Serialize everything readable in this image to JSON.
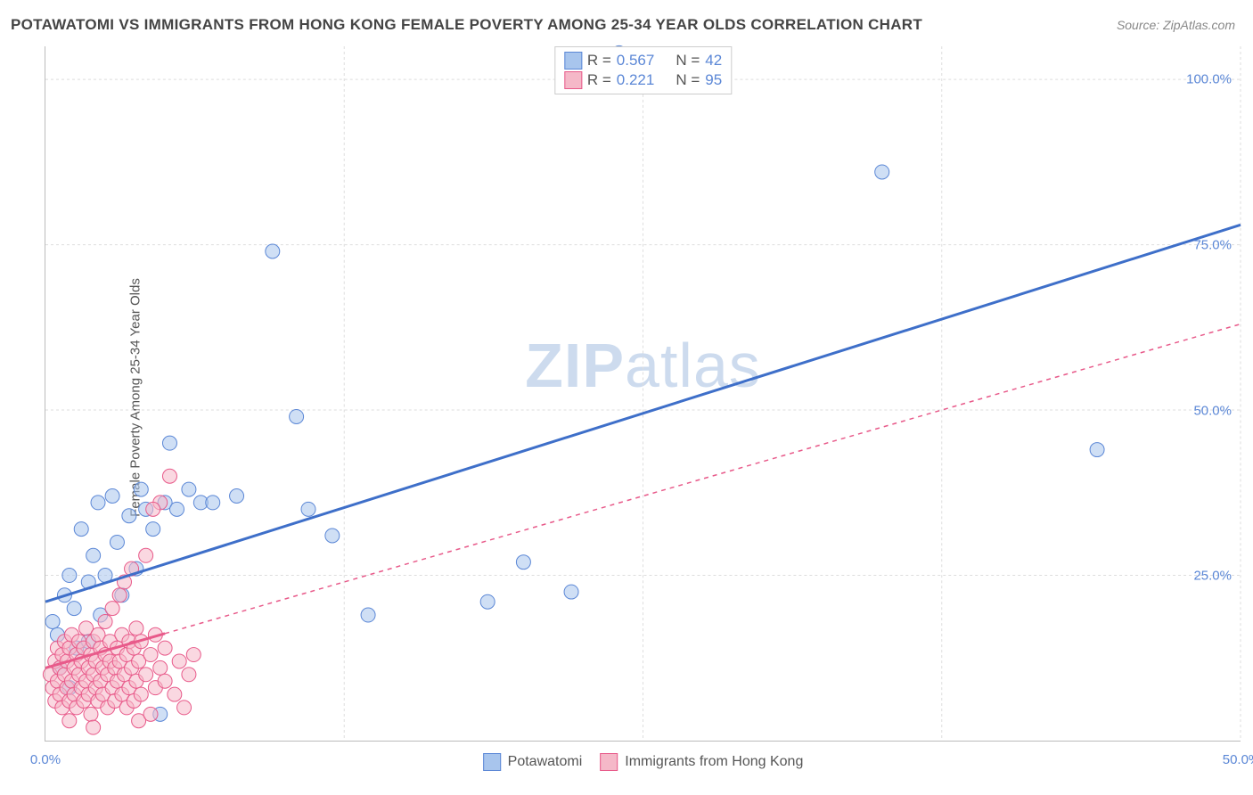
{
  "title": "POTAWATOMI VS IMMIGRANTS FROM HONG KONG FEMALE POVERTY AMONG 25-34 YEAR OLDS CORRELATION CHART",
  "source_label": "Source:",
  "source_value": "ZipAtlas.com",
  "y_axis_label": "Female Poverty Among 25-34 Year Olds",
  "watermark_bold": "ZIP",
  "watermark_light": "atlas",
  "chart": {
    "type": "scatter",
    "xlim": [
      0,
      50
    ],
    "ylim": [
      0,
      105
    ],
    "x_ticks": [
      {
        "pos": 0,
        "label": "0.0%"
      },
      {
        "pos": 50,
        "label": "50.0%"
      }
    ],
    "y_ticks": [
      {
        "pos": 25,
        "label": "25.0%"
      },
      {
        "pos": 50,
        "label": "50.0%"
      },
      {
        "pos": 75,
        "label": "75.0%"
      },
      {
        "pos": 100,
        "label": "100.0%"
      }
    ],
    "x_gridlines": [
      12.5,
      25,
      37.5,
      50
    ],
    "y_gridlines": [
      25,
      50,
      75,
      100
    ],
    "background_color": "#ffffff",
    "grid_color": "#dddddd",
    "marker_radius": 8,
    "marker_opacity": 0.55,
    "trend_line_width": 3,
    "series": [
      {
        "name": "Potawatomi",
        "fill_color": "#a8c5ed",
        "stroke_color": "#5b87d6",
        "r_label": "R =",
        "r_value": "0.567",
        "n_label": "N =",
        "n_value": "42",
        "trend": {
          "x1": 0,
          "y1": 21,
          "x2": 50,
          "y2": 78,
          "dash": "none",
          "color": "#3e6fc9",
          "solid_until_x": 50
        },
        "points": [
          [
            0.3,
            18
          ],
          [
            0.5,
            16
          ],
          [
            0.8,
            22
          ],
          [
            1.0,
            25
          ],
          [
            1.2,
            20
          ],
          [
            1.3,
            14
          ],
          [
            1.5,
            32
          ],
          [
            1.8,
            24
          ],
          [
            2.0,
            28
          ],
          [
            2.2,
            36
          ],
          [
            2.5,
            25
          ],
          [
            2.8,
            37
          ],
          [
            3.0,
            30
          ],
          [
            3.5,
            34
          ],
          [
            3.8,
            26
          ],
          [
            4.0,
            38
          ],
          [
            4.2,
            35
          ],
          [
            4.5,
            32
          ],
          [
            5.0,
            36
          ],
          [
            5.2,
            45
          ],
          [
            5.5,
            35
          ],
          [
            6.0,
            38
          ],
          [
            6.5,
            36
          ],
          [
            7.0,
            36
          ],
          [
            8.0,
            37
          ],
          [
            9.5,
            74
          ],
          [
            10.5,
            49
          ],
          [
            11.0,
            35
          ],
          [
            12.0,
            31
          ],
          [
            13.5,
            19
          ],
          [
            18.5,
            21
          ],
          [
            20.0,
            27
          ],
          [
            22.0,
            22.5
          ],
          [
            24.0,
            104
          ],
          [
            35.0,
            86
          ],
          [
            44.0,
            44
          ],
          [
            1.8,
            15
          ],
          [
            2.3,
            19
          ],
          [
            3.2,
            22
          ],
          [
            1.0,
            8
          ],
          [
            0.6,
            11
          ],
          [
            4.8,
            4
          ]
        ]
      },
      {
        "name": "Immigrants from Hong Kong",
        "fill_color": "#f5b8c8",
        "stroke_color": "#e85a8a",
        "r_label": "R =",
        "r_value": "0.221",
        "n_label": "N =",
        "n_value": "95",
        "trend": {
          "x1": 0,
          "y1": 11,
          "x2": 50,
          "y2": 63,
          "dash": "5,5",
          "color": "#e85a8a",
          "solid_until_x": 5.0
        },
        "points": [
          [
            0.2,
            10
          ],
          [
            0.3,
            8
          ],
          [
            0.4,
            12
          ],
          [
            0.4,
            6
          ],
          [
            0.5,
            14
          ],
          [
            0.5,
            9
          ],
          [
            0.6,
            11
          ],
          [
            0.6,
            7
          ],
          [
            0.7,
            13
          ],
          [
            0.7,
            5
          ],
          [
            0.8,
            15
          ],
          [
            0.8,
            10
          ],
          [
            0.9,
            8
          ],
          [
            0.9,
            12
          ],
          [
            1.0,
            6
          ],
          [
            1.0,
            14
          ],
          [
            1.1,
            9
          ],
          [
            1.1,
            16
          ],
          [
            1.2,
            7
          ],
          [
            1.2,
            11
          ],
          [
            1.3,
            13
          ],
          [
            1.3,
            5
          ],
          [
            1.4,
            10
          ],
          [
            1.4,
            15
          ],
          [
            1.5,
            8
          ],
          [
            1.5,
            12
          ],
          [
            1.6,
            6
          ],
          [
            1.6,
            14
          ],
          [
            1.7,
            9
          ],
          [
            1.7,
            17
          ],
          [
            1.8,
            11
          ],
          [
            1.8,
            7
          ],
          [
            1.9,
            13
          ],
          [
            1.9,
            4
          ],
          [
            2.0,
            10
          ],
          [
            2.0,
            15
          ],
          [
            2.1,
            8
          ],
          [
            2.1,
            12
          ],
          [
            2.2,
            6
          ],
          [
            2.2,
            16
          ],
          [
            2.3,
            9
          ],
          [
            2.3,
            14
          ],
          [
            2.4,
            11
          ],
          [
            2.4,
            7
          ],
          [
            2.5,
            13
          ],
          [
            2.5,
            18
          ],
          [
            2.6,
            10
          ],
          [
            2.6,
            5
          ],
          [
            2.7,
            12
          ],
          [
            2.7,
            15
          ],
          [
            2.8,
            8
          ],
          [
            2.8,
            20
          ],
          [
            2.9,
            11
          ],
          [
            2.9,
            6
          ],
          [
            3.0,
            14
          ],
          [
            3.0,
            9
          ],
          [
            3.1,
            22
          ],
          [
            3.1,
            12
          ],
          [
            3.2,
            7
          ],
          [
            3.2,
            16
          ],
          [
            3.3,
            10
          ],
          [
            3.3,
            24
          ],
          [
            3.4,
            13
          ],
          [
            3.4,
            5
          ],
          [
            3.5,
            15
          ],
          [
            3.5,
            8
          ],
          [
            3.6,
            26
          ],
          [
            3.6,
            11
          ],
          [
            3.7,
            6
          ],
          [
            3.7,
            14
          ],
          [
            3.8,
            9
          ],
          [
            3.8,
            17
          ],
          [
            3.9,
            12
          ],
          [
            3.9,
            3
          ],
          [
            4.0,
            15
          ],
          [
            4.0,
            7
          ],
          [
            4.2,
            28
          ],
          [
            4.2,
            10
          ],
          [
            4.4,
            13
          ],
          [
            4.4,
            4
          ],
          [
            4.6,
            16
          ],
          [
            4.6,
            8
          ],
          [
            4.8,
            11
          ],
          [
            4.8,
            36
          ],
          [
            5.0,
            9
          ],
          [
            5.0,
            14
          ],
          [
            5.2,
            40
          ],
          [
            5.4,
            7
          ],
          [
            5.6,
            12
          ],
          [
            5.8,
            5
          ],
          [
            6.0,
            10
          ],
          [
            6.2,
            13
          ],
          [
            4.5,
            35
          ],
          [
            2.0,
            2
          ],
          [
            1.0,
            3
          ]
        ]
      }
    ]
  }
}
